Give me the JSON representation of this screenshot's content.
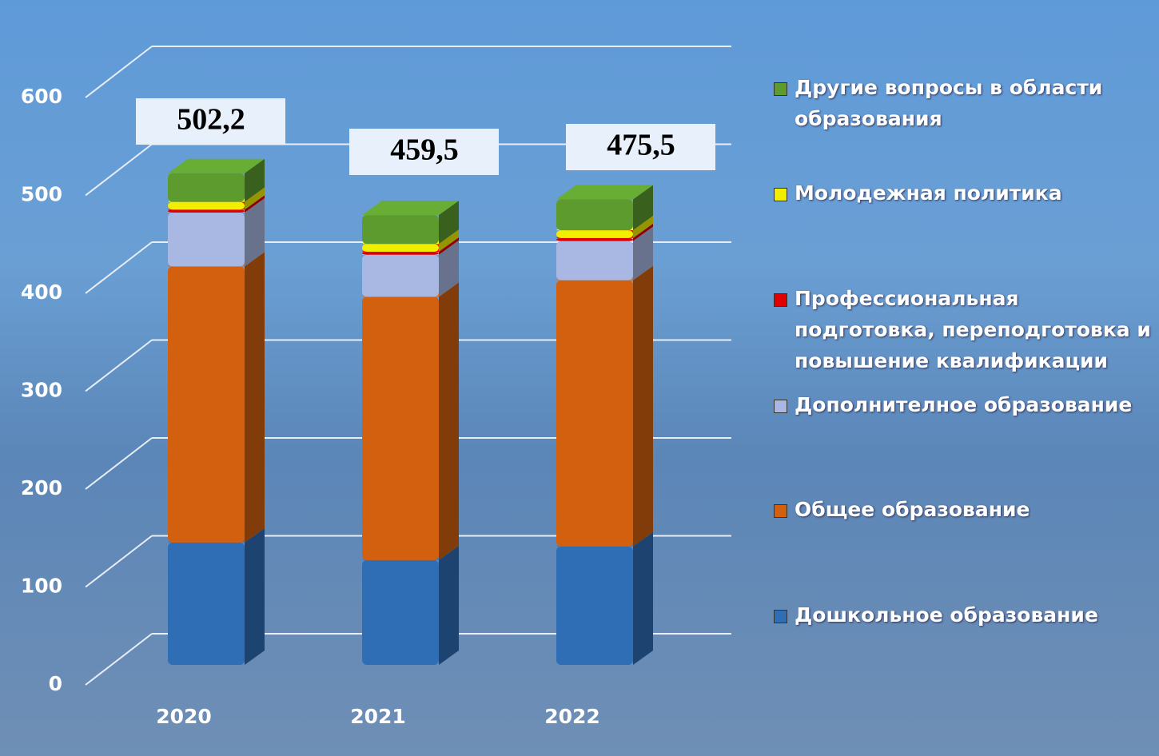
{
  "chart_data": {
    "type": "bar3d_stacked",
    "categories": [
      "2020",
      "2021",
      "2022"
    ],
    "series": [
      {
        "name": "Дошкольное образование",
        "color": "#2f6db5",
        "values": [
          125,
          107,
          121
        ]
      },
      {
        "name": "Общее образование",
        "color": "#d2600f",
        "values": [
          282,
          269,
          272
        ]
      },
      {
        "name": "Дополнителное образование",
        "color": "#a8b8e2",
        "values": [
          55,
          43,
          40
        ]
      },
      {
        "name": "Профессиональная подготовка, переподготовка и повышение квалификации",
        "color": "#e00000",
        "values": [
          3,
          3,
          3
        ]
      },
      {
        "name": "Молодежная политика",
        "color": "#f2ee00",
        "values": [
          8,
          8,
          8
        ]
      },
      {
        "name": "Другие вопросы в области образования",
        "color": "#5d9b2f",
        "values": [
          29.2,
          29.5,
          31.5
        ]
      }
    ],
    "totals": [
      502.2,
      459.5,
      475.5
    ],
    "total_labels": [
      "502,2",
      "459,5",
      "475,5"
    ],
    "ylim": [
      0,
      600
    ],
    "yticks": [
      0,
      100,
      200,
      300,
      400,
      500,
      600
    ],
    "grid": true
  }
}
